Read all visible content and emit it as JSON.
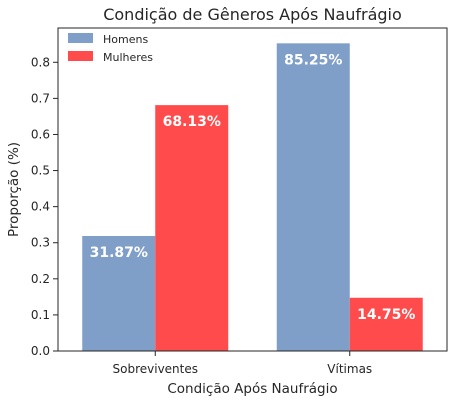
{
  "chart_data": {
    "type": "bar",
    "title": "Condição de Gêneros Após Naufrágio",
    "xlabel": "Condição Após Naufrágio",
    "ylabel": "Proporção (%)",
    "categories": [
      "Sobreviventes",
      "Vítimas"
    ],
    "series": [
      {
        "name": "Homens",
        "values": [
          0.3187,
          0.8525
        ],
        "labels": [
          "31.87%",
          "85.25%"
        ],
        "color": "#7f9ec8"
      },
      {
        "name": "Mulheres",
        "values": [
          0.6813,
          0.1475
        ],
        "labels": [
          "68.13%",
          "14.75%"
        ],
        "color": "#ff4b4b"
      }
    ],
    "ylim": [
      0,
      0.895
    ],
    "yticks": [
      0.0,
      0.1,
      0.2,
      0.3,
      0.4,
      0.5,
      0.6,
      0.7,
      0.8
    ],
    "ytick_labels": [
      "0.0",
      "0.1",
      "0.2",
      "0.3",
      "0.4",
      "0.5",
      "0.6",
      "0.7",
      "0.8"
    ],
    "grid": false,
    "legend_position": "top-left"
  }
}
